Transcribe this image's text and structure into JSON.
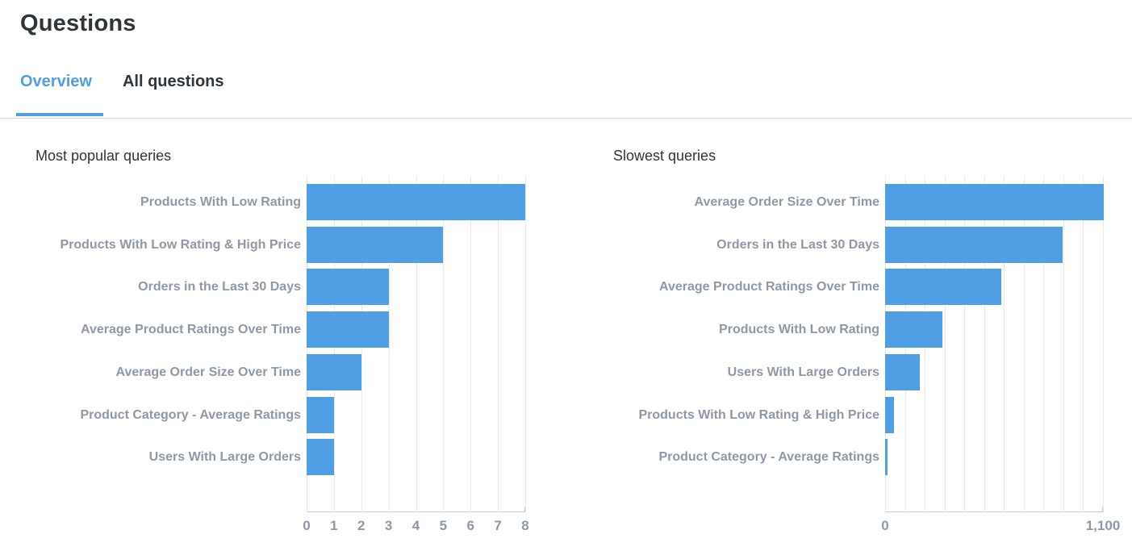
{
  "page": {
    "title": "Questions"
  },
  "tabs": [
    {
      "label": "Overview",
      "active": true
    },
    {
      "label": "All questions",
      "active": false
    }
  ],
  "colors": {
    "accent": "#509ee3",
    "bar": "#509ee3",
    "text_dark": "#2e353b",
    "text_muted": "#8f99a6",
    "gridline": "#e9eaec",
    "axis_line": "#c6cbd1",
    "tab_divider": "#dadada"
  },
  "chart_data": [
    {
      "type": "bar",
      "orientation": "horizontal",
      "title": "Most popular queries",
      "categories": [
        "Products With Low Rating",
        "Products With Low Rating & High Price",
        "Orders in the Last 30 Days",
        "Average Product Ratings Over Time",
        "Average Order Size Over Time",
        "Product Category - Average Ratings",
        "Users With Large Orders"
      ],
      "values": [
        8,
        5,
        3,
        3,
        2,
        1,
        1
      ],
      "xlim": [
        0,
        8
      ],
      "grid_step": 1,
      "grid": true,
      "legend": "none",
      "x_ticks": [
        {
          "value": 0,
          "label": "0"
        },
        {
          "value": 1,
          "label": "1"
        },
        {
          "value": 2,
          "label": "2"
        },
        {
          "value": 3,
          "label": "3"
        },
        {
          "value": 4,
          "label": "4"
        },
        {
          "value": 5,
          "label": "5"
        },
        {
          "value": 6,
          "label": "6"
        },
        {
          "value": 7,
          "label": "7"
        },
        {
          "value": 8,
          "label": "8"
        }
      ]
    },
    {
      "type": "bar",
      "orientation": "horizontal",
      "title": "Slowest queries",
      "categories": [
        "Average Order Size Over Time",
        "Orders in the Last 30 Days",
        "Average Product Ratings Over Time",
        "Products With Low Rating",
        "Users With Large Orders",
        "Products With Low Rating & High Price",
        "Product Category - Average Ratings"
      ],
      "values": [
        1105,
        895,
        585,
        290,
        175,
        45,
        14
      ],
      "xlim": [
        0,
        1100
      ],
      "grid_step": 100,
      "grid": true,
      "legend": "none",
      "x_ticks": [
        {
          "value": 0,
          "label": "0"
        },
        {
          "value": 1100,
          "label": "1,100"
        }
      ]
    }
  ]
}
